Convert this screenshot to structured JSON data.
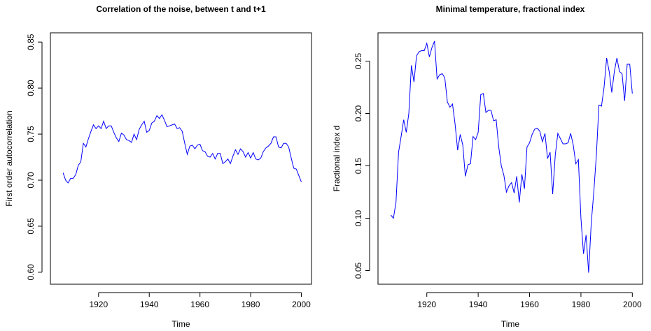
{
  "chart_data": [
    {
      "type": "line",
      "title": "Correlation of the noise, between t and t+1",
      "x_label": "Time",
      "y_label": "First order autocorrelation",
      "x": [
        1906,
        1907,
        1908,
        1909,
        1910,
        1911,
        1912,
        1913,
        1914,
        1915,
        1916,
        1917,
        1918,
        1919,
        1920,
        1921,
        1922,
        1923,
        1924,
        1925,
        1926,
        1927,
        1928,
        1929,
        1930,
        1931,
        1932,
        1933,
        1934,
        1935,
        1936,
        1937,
        1938,
        1939,
        1940,
        1941,
        1942,
        1943,
        1944,
        1945,
        1946,
        1947,
        1948,
        1949,
        1950,
        1951,
        1952,
        1953,
        1954,
        1955,
        1956,
        1957,
        1958,
        1959,
        1960,
        1961,
        1962,
        1963,
        1964,
        1965,
        1966,
        1967,
        1968,
        1969,
        1970,
        1971,
        1972,
        1973,
        1974,
        1975,
        1976,
        1977,
        1978,
        1979,
        1980,
        1981,
        1982,
        1983,
        1984,
        1985,
        1986,
        1987,
        1988,
        1989,
        1990,
        1991,
        1992,
        1993,
        1994,
        1995,
        1996,
        1997,
        1998,
        1999,
        2000
      ],
      "series": [
        {
          "color": "#0000ff",
          "values": [
            0.708,
            0.7,
            0.697,
            0.702,
            0.702,
            0.706,
            0.716,
            0.72,
            0.74,
            0.736,
            0.745,
            0.753,
            0.76,
            0.756,
            0.759,
            0.756,
            0.764,
            0.756,
            0.759,
            0.759,
            0.752,
            0.746,
            0.742,
            0.751,
            0.749,
            0.744,
            0.743,
            0.741,
            0.75,
            0.744,
            0.755,
            0.76,
            0.764,
            0.752,
            0.754,
            0.762,
            0.764,
            0.77,
            0.767,
            0.771,
            0.765,
            0.758,
            0.759,
            0.76,
            0.761,
            0.756,
            0.757,
            0.753,
            0.74,
            0.728,
            0.737,
            0.738,
            0.734,
            0.738,
            0.739,
            0.732,
            0.731,
            0.726,
            0.725,
            0.729,
            0.723,
            0.729,
            0.729,
            0.718,
            0.72,
            0.723,
            0.718,
            0.726,
            0.733,
            0.728,
            0.734,
            0.731,
            0.725,
            0.73,
            0.724,
            0.73,
            0.723,
            0.722,
            0.724,
            0.731,
            0.735,
            0.737,
            0.74,
            0.747,
            0.747,
            0.736,
            0.735,
            0.74,
            0.74,
            0.736,
            0.724,
            0.713,
            0.712,
            0.705,
            0.698
          ]
        }
      ],
      "xlim": [
        1901,
        2004
      ],
      "xticks": [
        1920,
        1940,
        1960,
        1980,
        2000
      ],
      "ylim": [
        0.587,
        0.86
      ],
      "yticks": [
        {
          "value": 0.6,
          "label": "0.60"
        },
        0.65,
        {
          "value": 0.7,
          "label": "0.70"
        },
        0.75,
        {
          "value": 0.8,
          "label": "0.80"
        },
        0.85
      ]
    },
    {
      "type": "line",
      "title": "Minimal temperature, fractional index",
      "x_label": "Time",
      "y_label": "Fractional index d",
      "x": [
        1906,
        1907,
        1908,
        1909,
        1910,
        1911,
        1912,
        1913,
        1914,
        1915,
        1916,
        1917,
        1918,
        1919,
        1920,
        1921,
        1922,
        1923,
        1924,
        1925,
        1926,
        1927,
        1928,
        1929,
        1930,
        1931,
        1932,
        1933,
        1934,
        1935,
        1936,
        1937,
        1938,
        1939,
        1940,
        1941,
        1942,
        1943,
        1944,
        1945,
        1946,
        1947,
        1948,
        1949,
        1950,
        1951,
        1952,
        1953,
        1954,
        1955,
        1956,
        1957,
        1958,
        1959,
        1960,
        1961,
        1962,
        1963,
        1964,
        1965,
        1966,
        1967,
        1968,
        1969,
        1970,
        1971,
        1972,
        1973,
        1974,
        1975,
        1976,
        1977,
        1978,
        1979,
        1980,
        1981,
        1982,
        1983,
        1984,
        1985,
        1986,
        1987,
        1988,
        1989,
        1990,
        1991,
        1992,
        1993,
        1994,
        1995,
        1996,
        1997,
        1998,
        1999,
        2000
      ],
      "series": [
        {
          "color": "#0000ff",
          "values": [
            0.103,
            0.1,
            0.115,
            0.163,
            0.178,
            0.194,
            0.182,
            0.2,
            0.246,
            0.23,
            0.255,
            0.259,
            0.26,
            0.26,
            0.267,
            0.254,
            0.263,
            0.269,
            0.233,
            0.237,
            0.238,
            0.234,
            0.211,
            0.206,
            0.209,
            0.19,
            0.165,
            0.18,
            0.17,
            0.14,
            0.151,
            0.152,
            0.178,
            0.175,
            0.182,
            0.218,
            0.219,
            0.201,
            0.203,
            0.203,
            0.193,
            0.194,
            0.168,
            0.15,
            0.141,
            0.125,
            0.131,
            0.134,
            0.124,
            0.14,
            0.115,
            0.142,
            0.128,
            0.168,
            0.172,
            0.18,
            0.185,
            0.186,
            0.183,
            0.173,
            0.181,
            0.157,
            0.163,
            0.123,
            0.16,
            0.181,
            0.176,
            0.171,
            0.171,
            0.172,
            0.181,
            0.17,
            0.152,
            0.156,
            0.1,
            0.066,
            0.084,
            0.048,
            0.095,
            0.125,
            0.16,
            0.208,
            0.207,
            0.225,
            0.253,
            0.24,
            0.22,
            0.24,
            0.253,
            0.24,
            0.238,
            0.212,
            0.247,
            0.247,
            0.219
          ]
        }
      ],
      "xlim": [
        1901,
        2004
      ],
      "xticks": [
        1920,
        1940,
        1960,
        1980,
        2000
      ],
      "ylim": [
        0.037,
        0.277
      ],
      "yticks": [
        0.05,
        {
          "value": 0.1,
          "label": "0.10"
        },
        0.15,
        {
          "value": 0.2,
          "label": "0.20"
        },
        0.25
      ]
    }
  ]
}
